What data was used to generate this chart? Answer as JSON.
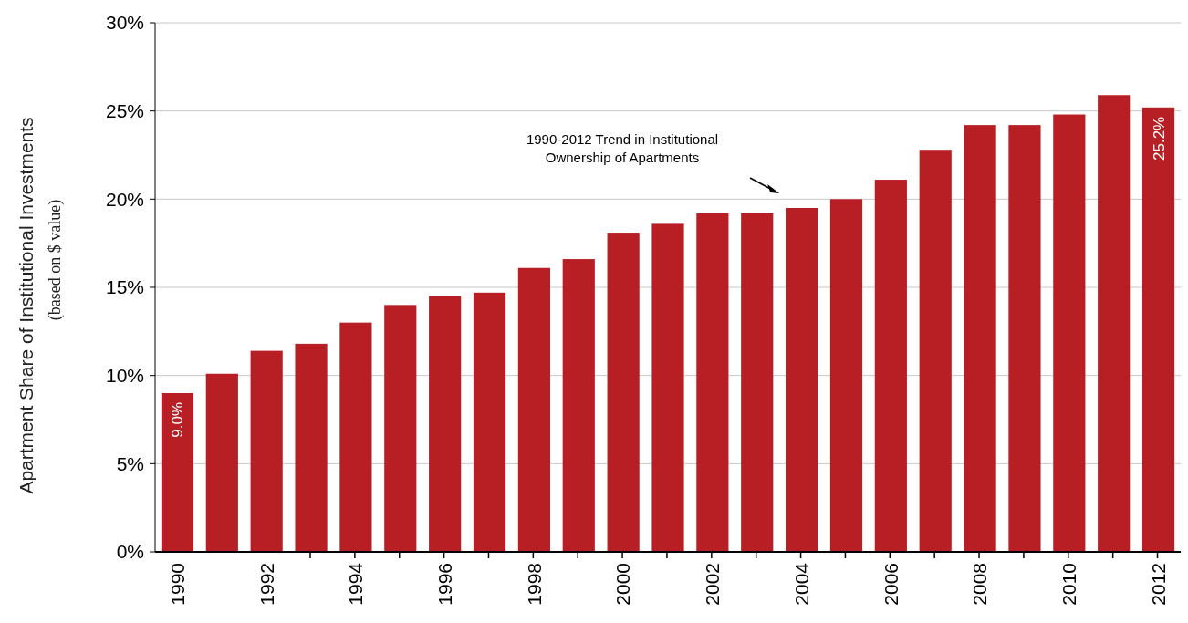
{
  "chart_data": {
    "type": "bar",
    "ylabel": "Apartment Share of Institutional Investments\n(based on $ value)",
    "categories": [
      "1990",
      null,
      "1992",
      null,
      "1994",
      null,
      "1996",
      null,
      "1998",
      null,
      "2000",
      null,
      "2002",
      null,
      "2004",
      null,
      "2006",
      null,
      "2008",
      null,
      "2010",
      null,
      "2012"
    ],
    "values": [
      9.0,
      10.1,
      11.4,
      11.8,
      13.0,
      14.0,
      14.5,
      14.7,
      16.1,
      16.6,
      18.1,
      18.6,
      19.2,
      19.2,
      19.5,
      20.0,
      21.1,
      22.8,
      24.2,
      24.2,
      24.8,
      25.9,
      25.2
    ],
    "value_labels": [
      "9.0%",
      null,
      null,
      null,
      null,
      null,
      null,
      null,
      null,
      null,
      null,
      null,
      null,
      null,
      null,
      null,
      null,
      null,
      null,
      null,
      null,
      null,
      "25.2%"
    ],
    "color": "#b81f25",
    "ylim": [
      0,
      30
    ],
    "yticks": [
      {
        "value": 0,
        "label": "0%"
      },
      {
        "value": 5,
        "label": "5%"
      },
      {
        "value": 10,
        "label": "10%"
      },
      {
        "value": 15,
        "label": "15%"
      },
      {
        "value": 20,
        "label": "20%"
      },
      {
        "value": 25,
        "label": "25%"
      },
      {
        "value": 30,
        "label": "30%"
      }
    ],
    "grid": "y",
    "annotations": [
      "1990-2012 Trend in Institutional\nOwnership of Apartments"
    ]
  }
}
